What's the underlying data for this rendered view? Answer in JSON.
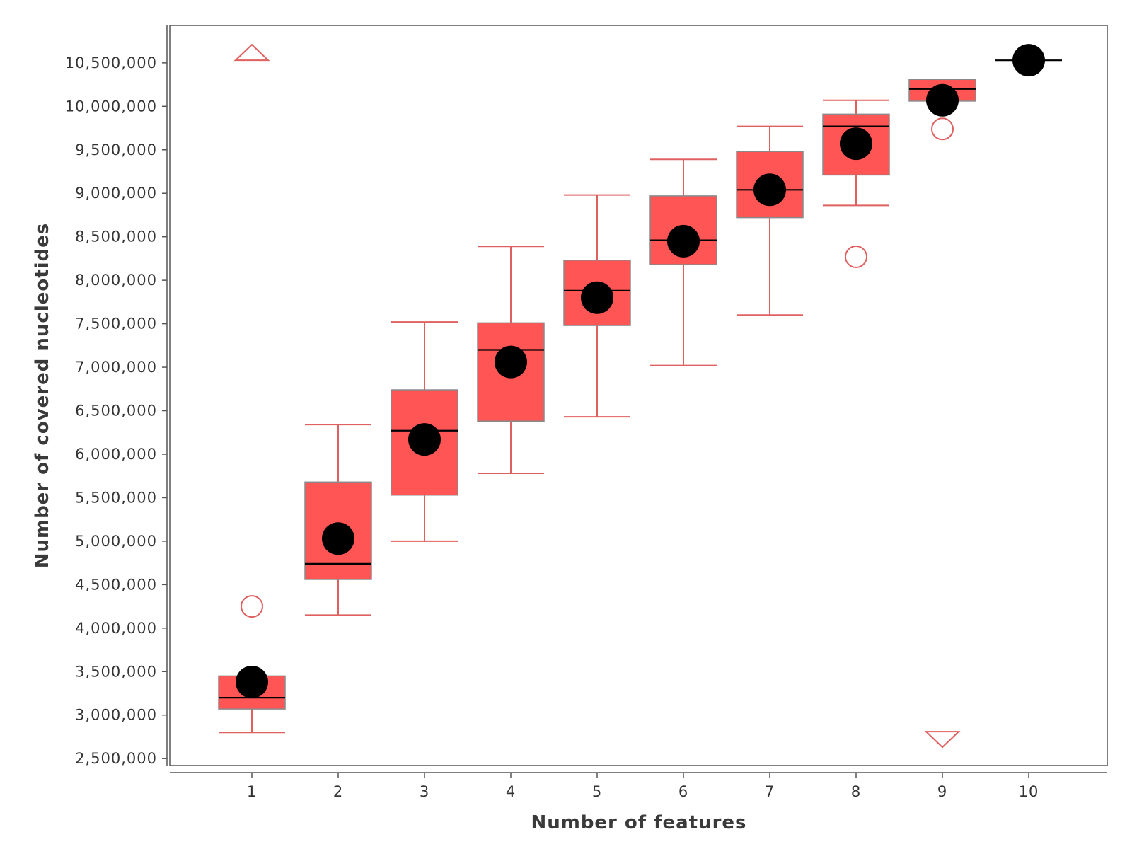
{
  "chart_data": {
    "type": "box",
    "title": "",
    "xlabel": "Number of features",
    "ylabel": "Number of covered nucleotides",
    "categories": [
      "1",
      "2",
      "3",
      "4",
      "5",
      "6",
      "7",
      "8",
      "9",
      "10"
    ],
    "ylim": [
      2420000,
      10930000
    ],
    "yticks": [
      2500000,
      3000000,
      3500000,
      4000000,
      4500000,
      5000000,
      5500000,
      6000000,
      6500000,
      7000000,
      7500000,
      8000000,
      8500000,
      9000000,
      9500000,
      10000000,
      10500000
    ],
    "ytick_labels": [
      "2,500,000",
      "3,000,000",
      "3,500,000",
      "4,000,000",
      "4,500,000",
      "5,000,000",
      "5,500,000",
      "6,000,000",
      "6,500,000",
      "7,000,000",
      "7,500,000",
      "8,000,000",
      "8,500,000",
      "9,000,000",
      "9,500,000",
      "10,000,000",
      "10,500,000"
    ],
    "boxes": [
      {
        "x": "1",
        "whisker_low": 2800000,
        "q1": 3070000,
        "median": 3200000,
        "q3": 3450000,
        "whisker_high": 3450000,
        "mean": 3380000,
        "outliers": [
          4250000
        ]
      },
      {
        "x": "2",
        "whisker_low": 4150000,
        "q1": 4560000,
        "median": 4740000,
        "q3": 5680000,
        "whisker_high": 6340000,
        "mean": 5030000,
        "outliers": []
      },
      {
        "x": "3",
        "whisker_low": 5000000,
        "q1": 5530000,
        "median": 6270000,
        "q3": 6740000,
        "whisker_high": 7520000,
        "mean": 6170000,
        "outliers": []
      },
      {
        "x": "4",
        "whisker_low": 5780000,
        "q1": 6380000,
        "median": 7200000,
        "q3": 7510000,
        "whisker_high": 8390000,
        "mean": 7060000,
        "outliers": []
      },
      {
        "x": "5",
        "whisker_low": 6430000,
        "q1": 7480000,
        "median": 7880000,
        "q3": 8230000,
        "whisker_high": 8980000,
        "mean": 7800000,
        "outliers": []
      },
      {
        "x": "6",
        "whisker_low": 7020000,
        "q1": 8180000,
        "median": 8460000,
        "q3": 8970000,
        "whisker_high": 9390000,
        "mean": 8450000,
        "outliers": []
      },
      {
        "x": "7",
        "whisker_low": 7600000,
        "q1": 8720000,
        "median": 9040000,
        "q3": 9480000,
        "whisker_high": 9770000,
        "mean": 9040000,
        "outliers": []
      },
      {
        "x": "8",
        "whisker_low": 8860000,
        "q1": 9210000,
        "median": 9770000,
        "q3": 9910000,
        "whisker_high": 10070000,
        "mean": 9570000,
        "outliers": [
          8270000
        ]
      },
      {
        "x": "9",
        "whisker_low": 10060000,
        "q1": 10060000,
        "median": 10200000,
        "q3": 10310000,
        "whisker_high": 10310000,
        "mean": 10070000,
        "outliers": [
          9740000
        ]
      },
      {
        "x": "10",
        "whisker_low": 10530000,
        "q1": 10530000,
        "median": 10530000,
        "q3": 10530000,
        "whisker_high": 10530000,
        "mean": 10530000,
        "outliers": []
      }
    ],
    "markers": [
      {
        "x": "1",
        "y": 10620000,
        "shape": "triangle-up"
      },
      {
        "x": "9",
        "y": 2720000,
        "shape": "triangle-down"
      }
    ],
    "grid": false,
    "legend": "none",
    "colors": {
      "box_fill": "#ff5555",
      "box_border": "#8a8a8a",
      "whisker": "#e06060",
      "median": "#000000",
      "mean": "#000000",
      "outlier": "#e06060",
      "axis": "#555555"
    }
  }
}
